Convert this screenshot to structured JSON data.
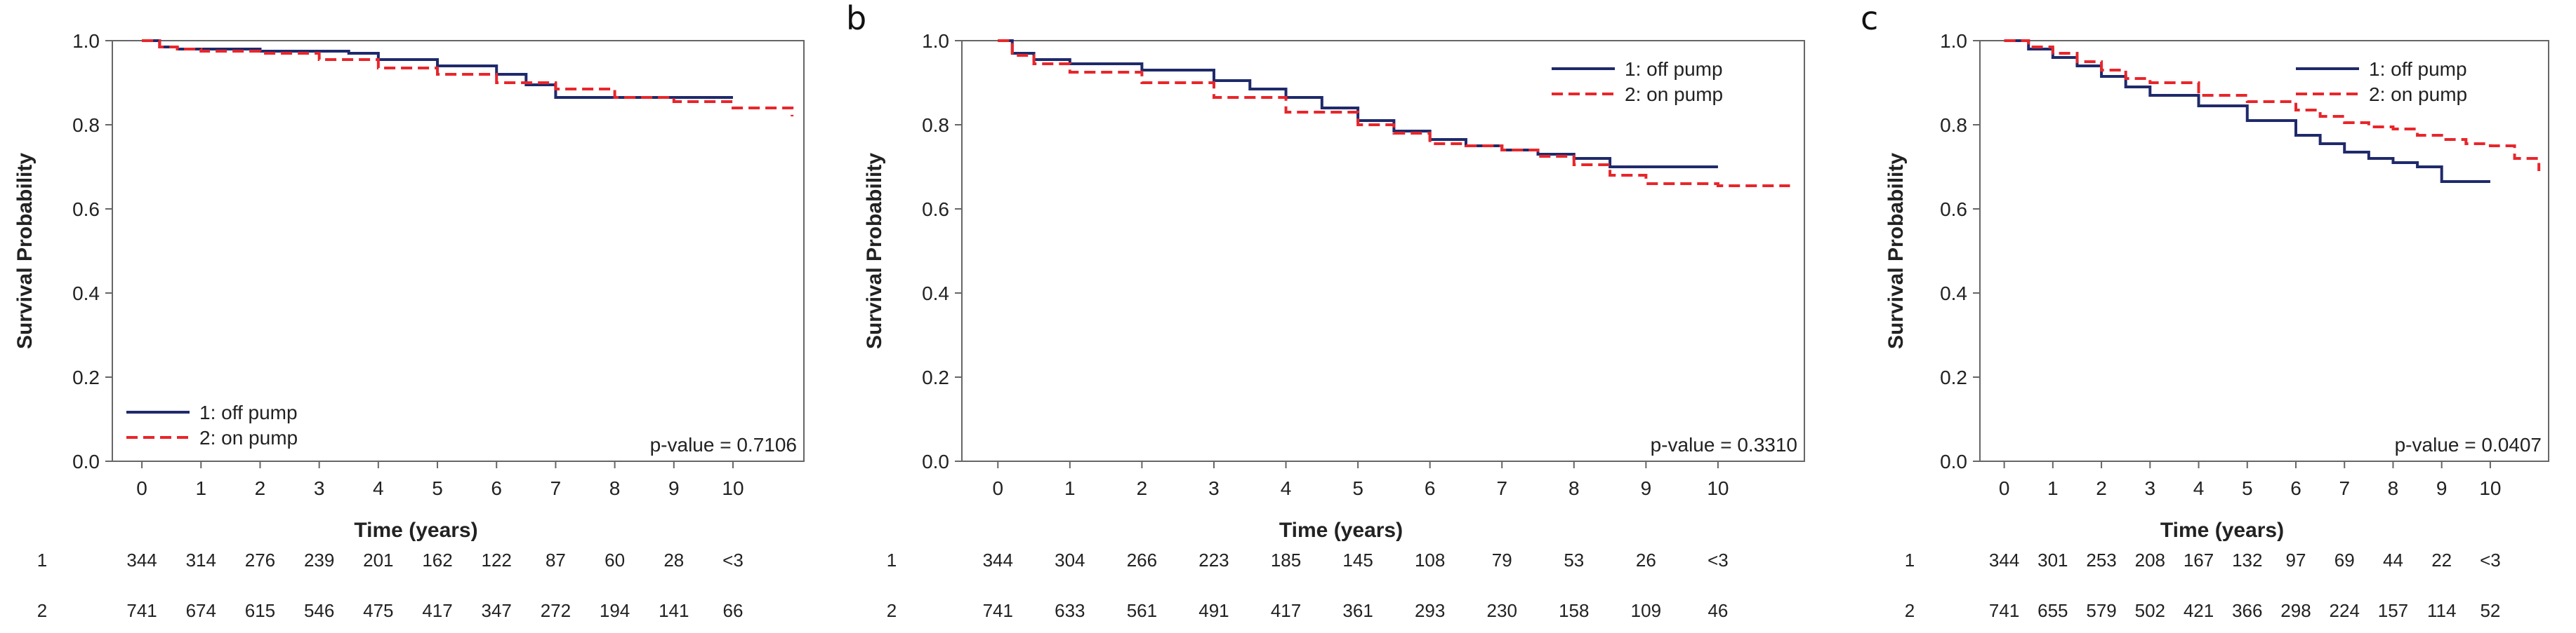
{
  "colors": {
    "off_pump": "#1f2a6b",
    "on_pump": "#e8262b",
    "frame": "#666666"
  },
  "chart_data": [
    {
      "panel": "",
      "type": "line",
      "xlabel": "Time (years)",
      "ylabel": "Survival Probability",
      "xlim": [
        -0.5,
        11.2
      ],
      "ylim": [
        0.0,
        1.0
      ],
      "xticks": [
        "0",
        "1",
        "2",
        "3",
        "4",
        "5",
        "6",
        "7",
        "8",
        "9",
        "10"
      ],
      "yticks": [
        "0.0",
        "0.2",
        "0.4",
        "0.6",
        "0.8",
        "1.0"
      ],
      "legend": [
        "1: off pump",
        "2: on pump"
      ],
      "legend_position": "bottom-left",
      "p_value": "p-value = 0.7106",
      "series": [
        {
          "name": "1: off pump",
          "x": [
            0,
            0.3,
            0.6,
            1,
            2,
            3,
            3.5,
            4,
            5,
            6,
            6.5,
            7,
            8,
            9,
            10
          ],
          "y": [
            1.0,
            0.985,
            0.98,
            0.98,
            0.975,
            0.975,
            0.97,
            0.955,
            0.94,
            0.92,
            0.895,
            0.865,
            0.865,
            0.865,
            0.865
          ]
        },
        {
          "name": "2: on pump",
          "x": [
            0,
            0.3,
            0.6,
            1,
            2,
            3,
            4,
            5,
            6,
            7,
            8,
            9,
            10,
            11
          ],
          "y": [
            1.0,
            0.985,
            0.98,
            0.975,
            0.97,
            0.955,
            0.935,
            0.92,
            0.9,
            0.885,
            0.865,
            0.855,
            0.84,
            0.82
          ]
        }
      ],
      "risk_table": {
        "rows": [
          {
            "label": "1",
            "values": [
              "344",
              "314",
              "276",
              "239",
              "201",
              "162",
              "122",
              "87",
              "60",
              "28",
              "<3"
            ]
          },
          {
            "label": "2",
            "values": [
              "741",
              "674",
              "615",
              "546",
              "475",
              "417",
              "347",
              "272",
              "194",
              "141",
              "66"
            ]
          }
        ]
      }
    },
    {
      "panel": "b",
      "type": "line",
      "xlabel": "Time (years)",
      "ylabel": "Survival Probability",
      "xlim": [
        -0.5,
        11.2
      ],
      "ylim": [
        0.0,
        1.0
      ],
      "xticks": [
        "0",
        "1",
        "2",
        "3",
        "4",
        "5",
        "6",
        "7",
        "8",
        "9",
        "10"
      ],
      "yticks": [
        "0.0",
        "0.2",
        "0.4",
        "0.6",
        "0.8",
        "1.0"
      ],
      "legend": [
        "1: off pump",
        "2: on pump"
      ],
      "legend_position": "top-right",
      "p_value": "p-value = 0.3310",
      "series": [
        {
          "name": "1: off pump",
          "x": [
            0,
            0.2,
            0.5,
            1,
            2,
            3,
            3.5,
            4,
            4.5,
            5,
            5.5,
            6,
            6.5,
            7,
            7.5,
            8,
            8.5,
            9,
            10
          ],
          "y": [
            1.0,
            0.97,
            0.955,
            0.945,
            0.93,
            0.905,
            0.885,
            0.865,
            0.84,
            0.81,
            0.785,
            0.765,
            0.75,
            0.74,
            0.73,
            0.72,
            0.7,
            0.7,
            0.7
          ]
        },
        {
          "name": "2: on pump",
          "x": [
            0,
            0.2,
            0.5,
            1,
            2,
            3,
            4,
            5,
            5.5,
            6,
            6.5,
            7,
            7.5,
            8,
            8.5,
            9,
            10,
            11
          ],
          "y": [
            1.0,
            0.965,
            0.945,
            0.925,
            0.9,
            0.865,
            0.83,
            0.8,
            0.78,
            0.755,
            0.75,
            0.74,
            0.725,
            0.705,
            0.68,
            0.66,
            0.655,
            0.655
          ]
        }
      ],
      "risk_table": {
        "rows": [
          {
            "label": "1",
            "values": [
              "344",
              "304",
              "266",
              "223",
              "185",
              "145",
              "108",
              "79",
              "53",
              "26",
              "<3"
            ]
          },
          {
            "label": "2",
            "values": [
              "741",
              "633",
              "561",
              "491",
              "417",
              "361",
              "293",
              "230",
              "158",
              "109",
              "46"
            ]
          }
        ]
      }
    },
    {
      "panel": "c",
      "type": "line",
      "xlabel": "Time (years)",
      "ylabel": "Survival Probability",
      "xlim": [
        -0.5,
        11.2
      ],
      "ylim": [
        0.0,
        1.0
      ],
      "xticks": [
        "0",
        "1",
        "2",
        "3",
        "4",
        "5",
        "6",
        "7",
        "8",
        "9",
        "10"
      ],
      "yticks": [
        "0.0",
        "0.2",
        "0.4",
        "0.6",
        "0.8",
        "1.0"
      ],
      "legend": [
        "1: off pump",
        "2: on pump"
      ],
      "legend_position": "top-right",
      "p_value": "p-value = 0.0407",
      "series": [
        {
          "name": "1: off pump",
          "x": [
            0,
            0.5,
            1,
            1.5,
            2,
            2.5,
            3,
            4,
            5,
            6,
            6.5,
            7,
            7.5,
            8,
            8.5,
            9,
            9.5,
            10
          ],
          "y": [
            1.0,
            0.98,
            0.96,
            0.94,
            0.915,
            0.89,
            0.87,
            0.845,
            0.81,
            0.775,
            0.755,
            0.735,
            0.72,
            0.71,
            0.7,
            0.665,
            0.665,
            0.665
          ]
        },
        {
          "name": "2: on pump",
          "x": [
            0,
            0.5,
            1,
            1.5,
            2,
            2.5,
            3,
            4,
            5,
            6,
            6.5,
            7,
            7.5,
            8,
            8.5,
            9,
            9.5,
            10,
            10.5,
            11
          ],
          "y": [
            1.0,
            0.985,
            0.97,
            0.95,
            0.93,
            0.91,
            0.9,
            0.87,
            0.855,
            0.835,
            0.82,
            0.805,
            0.795,
            0.79,
            0.775,
            0.765,
            0.755,
            0.75,
            0.72,
            0.69
          ]
        }
      ],
      "risk_table": {
        "rows": [
          {
            "label": "1",
            "values": [
              "344",
              "301",
              "253",
              "208",
              "167",
              "132",
              "97",
              "69",
              "44",
              "22",
              "<3"
            ]
          },
          {
            "label": "2",
            "values": [
              "741",
              "655",
              "579",
              "502",
              "421",
              "366",
              "298",
              "224",
              "157",
              "114",
              "52"
            ]
          }
        ]
      }
    }
  ]
}
